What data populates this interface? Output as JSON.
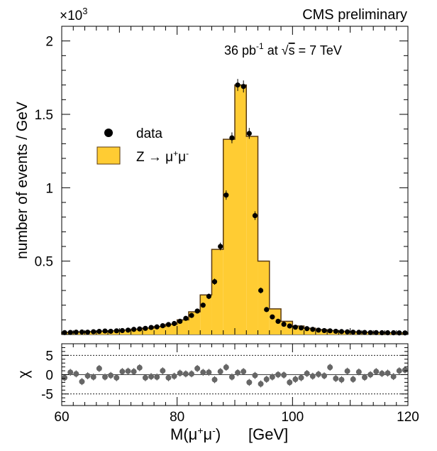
{
  "header": {
    "cms_label": "CMS preliminary",
    "lumi_prefix": "36 pb",
    "lumi_exp": "-1",
    "lumi_at": "at",
    "sqrt_sign": "√",
    "lumi_s": "s",
    "lumi_energy": "= 7 TeV",
    "exponent_base": "×10",
    "exponent_power": "3"
  },
  "legend": {
    "data_label": "data",
    "mc_label": "Z → μ⁺μ⁻"
  },
  "axes": {
    "ylabel": "number of events / GeV",
    "xlabel": "M(μ⁺μ⁻)",
    "xunit": "[GeV]",
    "chi_label": "χ",
    "x_ticks": [
      "60",
      "80",
      "100",
      "120"
    ],
    "y_ticks": [
      "0.5",
      "1",
      "1.5",
      "2"
    ],
    "chi_ticks": [
      "5",
      "0",
      "-5"
    ]
  },
  "colors": {
    "mc_fill": "#FFCC33",
    "mc_line": "#5a3a10",
    "data_marker": "#000000",
    "chi_marker": "#666666"
  },
  "chart_data": [
    {
      "type": "bar",
      "title": "",
      "xlabel": "M(μ⁺μ⁻) [GeV]",
      "ylabel": "number of events / GeV",
      "xlim": [
        60,
        120
      ],
      "ylim": [
        0,
        2.1
      ],
      "y_multiplier": "×10³",
      "bin_width": 2,
      "series": [
        {
          "name": "Z → μ⁺μ⁻",
          "kind": "histogram",
          "bin_low_edges": [
            60,
            62,
            64,
            66,
            68,
            70,
            72,
            74,
            76,
            78,
            80,
            82,
            84,
            86,
            88,
            90,
            92,
            94,
            96,
            98,
            100,
            102,
            104,
            106,
            108,
            110,
            112,
            114,
            116,
            118
          ],
          "values": [
            0.015,
            0.018,
            0.02,
            0.023,
            0.026,
            0.03,
            0.036,
            0.044,
            0.055,
            0.07,
            0.1,
            0.155,
            0.27,
            0.58,
            1.33,
            1.7,
            1.35,
            0.5,
            0.175,
            0.09,
            0.058,
            0.043,
            0.033,
            0.027,
            0.022,
            0.018,
            0.016,
            0.014,
            0.012,
            0.011
          ]
        },
        {
          "name": "data",
          "kind": "points",
          "x": [
            60.5,
            61.5,
            62.5,
            63.5,
            64.5,
            65.5,
            66.5,
            67.5,
            68.5,
            69.5,
            70.5,
            71.5,
            72.5,
            73.5,
            74.5,
            75.5,
            76.5,
            77.5,
            78.5,
            79.5,
            80.5,
            81.5,
            82.5,
            83.5,
            84.5,
            85.5,
            86.5,
            87.5,
            88.5,
            89.5,
            90.5,
            91.5,
            92.5,
            93.5,
            94.5,
            95.5,
            96.5,
            97.5,
            98.5,
            99.5,
            100.5,
            101.5,
            102.5,
            103.5,
            104.5,
            105.5,
            106.5,
            107.5,
            108.5,
            109.5,
            110.5,
            111.5,
            112.5,
            113.5,
            114.5,
            115.5,
            116.5,
            117.5,
            118.5,
            119.5
          ],
          "y": [
            0.013,
            0.014,
            0.016,
            0.017,
            0.016,
            0.019,
            0.021,
            0.024,
            0.022,
            0.025,
            0.027,
            0.03,
            0.035,
            0.038,
            0.042,
            0.048,
            0.052,
            0.06,
            0.068,
            0.075,
            0.09,
            0.11,
            0.13,
            0.16,
            0.2,
            0.26,
            0.36,
            0.6,
            0.95,
            1.34,
            1.7,
            1.69,
            1.37,
            0.81,
            0.3,
            0.17,
            0.12,
            0.09,
            0.07,
            0.058,
            0.05,
            0.045,
            0.04,
            0.035,
            0.03,
            0.027,
            0.025,
            0.022,
            0.02,
            0.018,
            0.016,
            0.015,
            0.014,
            0.013,
            0.013,
            0.012,
            0.012,
            0.012,
            0.011,
            0.011
          ]
        }
      ]
    },
    {
      "type": "scatter",
      "title": "",
      "xlabel": "M(μ⁺μ⁻) [GeV]",
      "ylabel": "χ",
      "xlim": [
        60,
        120
      ],
      "ylim": [
        -8,
        8
      ],
      "reference_lines": [
        5,
        0,
        -5
      ],
      "series": [
        {
          "name": "",
          "x": [
            60.5,
            61.5,
            62.5,
            63.5,
            64.5,
            65.5,
            66.5,
            67.5,
            68.5,
            69.5,
            70.5,
            71.5,
            72.5,
            73.5,
            74.5,
            75.5,
            76.5,
            77.5,
            78.5,
            79.5,
            80.5,
            81.5,
            82.5,
            83.5,
            84.5,
            85.5,
            86.5,
            87.5,
            88.5,
            89.5,
            90.5,
            91.5,
            92.5,
            93.5,
            94.5,
            95.5,
            96.5,
            97.5,
            98.5,
            99.5,
            100.5,
            101.5,
            102.5,
            103.5,
            104.5,
            105.5,
            106.5,
            107.5,
            108.5,
            109.5,
            110.5,
            111.5,
            112.5,
            113.5,
            114.5,
            115.5,
            116.5,
            117.5,
            118.5,
            119.5
          ],
          "y": [
            -0.8,
            0.6,
            0.2,
            -1.8,
            -0.3,
            -0.6,
            1.6,
            -0.6,
            -0.2,
            -0.8,
            0.8,
            0.9,
            0.8,
            1.8,
            -0.8,
            -0.5,
            -0.6,
            1.0,
            -0.8,
            -0.4,
            0.4,
            0.2,
            0.2,
            1.6,
            0.6,
            0.6,
            -1.3,
            0.8,
            1.9,
            -0.6,
            0.5,
            0.8,
            -2.0,
            -0.2,
            -2.4,
            -1.2,
            -0.6,
            0.0,
            -0.1,
            -2.0,
            -1.2,
            -0.8,
            0.3,
            -0.4,
            0.1,
            -0.3,
            1.9,
            -1.0,
            -1.3,
            0.9,
            -1.2,
            0.7,
            -0.7,
            0.0,
            0.8,
            0.3,
            0.4,
            -0.5,
            1.0,
            1.2
          ],
          "errors": 0.9
        }
      ]
    }
  ]
}
